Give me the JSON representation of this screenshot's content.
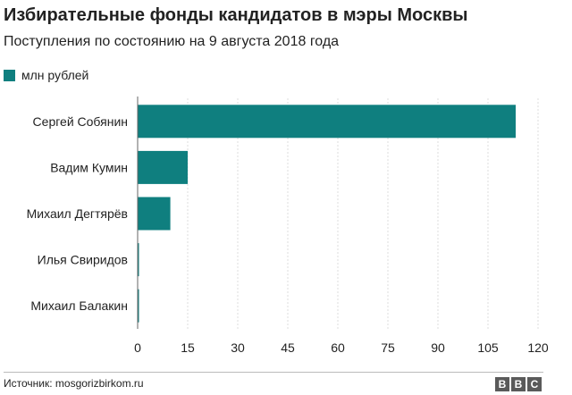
{
  "header": {
    "title": "Избирательные фонды кандидатов в мэры Москвы",
    "subtitle": "Поступления по состоянию на 9 августа 2018 года"
  },
  "legend": {
    "label": "млн рублей",
    "color": "#0f7f7f"
  },
  "chart_data": {
    "type": "bar",
    "orientation": "horizontal",
    "categories": [
      "Сергей Собянин",
      "Вадим Кумин",
      "Михаил Дегтярёв",
      "Илья Свиридов",
      "Михаил Балакин"
    ],
    "series": [
      {
        "name": "млн рублей",
        "values": [
          113.3,
          15.0,
          9.8,
          0.4,
          0.2
        ]
      }
    ],
    "xlim": [
      0,
      120
    ],
    "xticks": [
      0,
      15,
      30,
      45,
      60,
      75,
      90,
      105,
      120
    ],
    "grid": true,
    "legend_position": "top-left",
    "bar_color": "#0f7f7f"
  },
  "footer": {
    "source": "Источник: mosgorizbirkom.ru",
    "logo_letters": [
      "B",
      "B",
      "C"
    ]
  }
}
